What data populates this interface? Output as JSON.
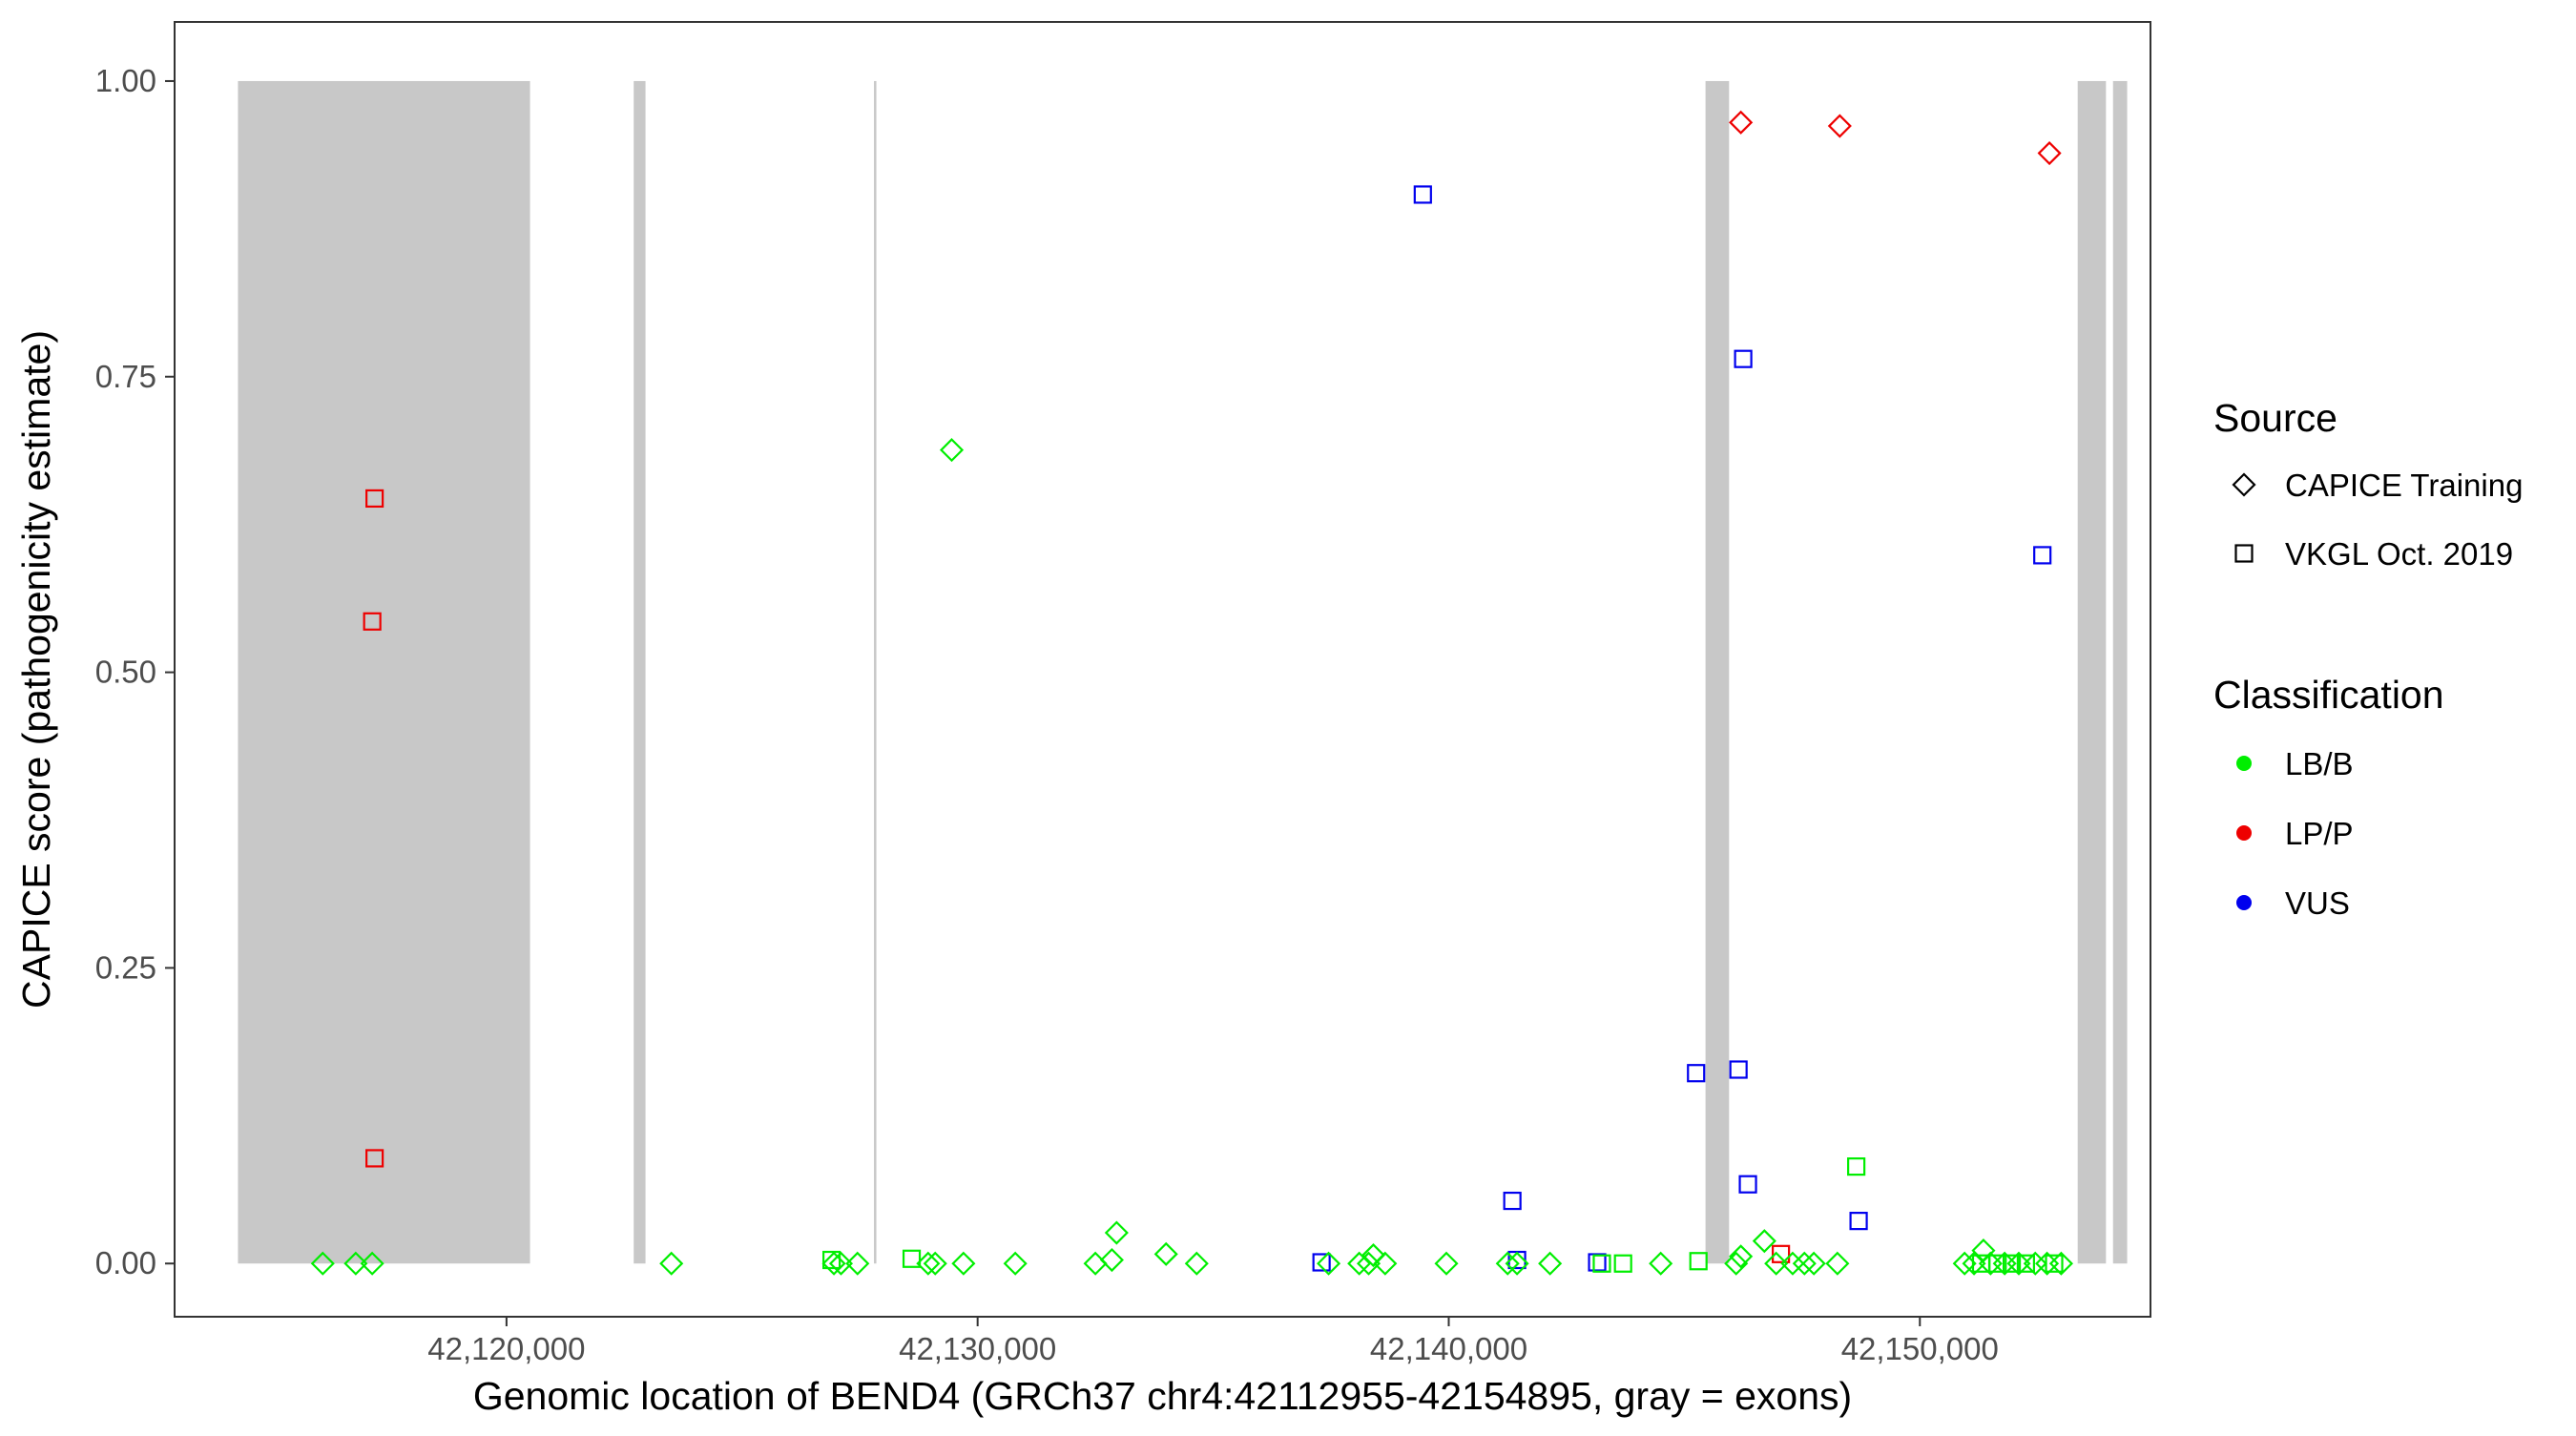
{
  "chart_data": {
    "type": "scatter",
    "xlabel": "Genomic location of BEND4 (GRCh37 chr4:42112955-42154895, gray = exons)",
    "ylabel": "CAPICE score (pathogenicity estimate)",
    "xlim": [
      42112955,
      42154895
    ],
    "ylim": [
      -0.045,
      1.05
    ],
    "x_ticks": [
      42120000,
      42130000,
      42140000,
      42150000
    ],
    "x_tick_labels": [
      "42,120,000",
      "42,130,000",
      "42,140,000",
      "42,150,000"
    ],
    "y_ticks": [
      0,
      0.25,
      0.5,
      0.75,
      1.0
    ],
    "y_tick_labels": [
      "0.00",
      "0.25",
      "0.50",
      "0.75",
      "1.00"
    ],
    "grid": false,
    "exons": [
      [
        42114300,
        42120500
      ],
      [
        42122700,
        42122950
      ],
      [
        42127800,
        42127850
      ],
      [
        42145450,
        42145950
      ],
      [
        42153350,
        42153950
      ],
      [
        42154100,
        42154400
      ]
    ],
    "exon_color": "#c8c8c8",
    "legend": {
      "placement": "right",
      "source_title": "Source",
      "source_items": [
        {
          "label": "CAPICE Training",
          "shape": "diamond"
        },
        {
          "label": "VKGL Oct. 2019",
          "shape": "square"
        }
      ],
      "classification_title": "Classification",
      "classification_items": [
        {
          "label": "LB/B",
          "color": "#00ee00"
        },
        {
          "label": "LP/P",
          "color": "#ee0000"
        },
        {
          "label": "VUS",
          "color": "#0000ee"
        }
      ]
    },
    "colors": {
      "LB/B": "#00ee00",
      "LP/P": "#ee0000",
      "VUS": "#0000ee"
    },
    "points": [
      {
        "x": 42117200,
        "y": 0.647,
        "shape": "square",
        "class": "LP/P"
      },
      {
        "x": 42117150,
        "y": 0.543,
        "shape": "square",
        "class": "LP/P"
      },
      {
        "x": 42117200,
        "y": 0.089,
        "shape": "square",
        "class": "LP/P"
      },
      {
        "x": 42146200,
        "y": 0.965,
        "shape": "diamond",
        "class": "LP/P"
      },
      {
        "x": 42148300,
        "y": 0.962,
        "shape": "diamond",
        "class": "LP/P"
      },
      {
        "x": 42152750,
        "y": 0.939,
        "shape": "diamond",
        "class": "LP/P"
      },
      {
        "x": 42147050,
        "y": 0.008,
        "shape": "square",
        "class": "LP/P"
      },
      {
        "x": 42139450,
        "y": 0.904,
        "shape": "square",
        "class": "VUS"
      },
      {
        "x": 42146250,
        "y": 0.765,
        "shape": "square",
        "class": "VUS"
      },
      {
        "x": 42152600,
        "y": 0.599,
        "shape": "square",
        "class": "VUS"
      },
      {
        "x": 42145250,
        "y": 0.161,
        "shape": "square",
        "class": "VUS"
      },
      {
        "x": 42146150,
        "y": 0.164,
        "shape": "square",
        "class": "VUS"
      },
      {
        "x": 42146350,
        "y": 0.067,
        "shape": "square",
        "class": "VUS"
      },
      {
        "x": 42141350,
        "y": 0.053,
        "shape": "square",
        "class": "VUS"
      },
      {
        "x": 42148700,
        "y": 0.036,
        "shape": "square",
        "class": "VUS"
      },
      {
        "x": 42137300,
        "y": 0.001,
        "shape": "square",
        "class": "VUS"
      },
      {
        "x": 42141450,
        "y": 0.003,
        "shape": "square",
        "class": "VUS"
      },
      {
        "x": 42143150,
        "y": 0.001,
        "shape": "square",
        "class": "VUS"
      },
      {
        "x": 42129450,
        "y": 0.688,
        "shape": "diamond",
        "class": "LB/B"
      },
      {
        "x": 42148650,
        "y": 0.082,
        "shape": "square",
        "class": "LB/B"
      },
      {
        "x": 42132950,
        "y": 0.026,
        "shape": "diamond",
        "class": "LB/B"
      },
      {
        "x": 42146700,
        "y": 0.019,
        "shape": "diamond",
        "class": "LB/B"
      },
      {
        "x": 42151350,
        "y": 0.011,
        "shape": "diamond",
        "class": "LB/B"
      },
      {
        "x": 42134000,
        "y": 0.008,
        "shape": "diamond",
        "class": "LB/B"
      },
      {
        "x": 42138400,
        "y": 0.007,
        "shape": "diamond",
        "class": "LB/B"
      },
      {
        "x": 42146200,
        "y": 0.006,
        "shape": "diamond",
        "class": "LB/B"
      },
      {
        "x": 42128600,
        "y": 0.004,
        "shape": "square",
        "class": "LB/B"
      },
      {
        "x": 42126900,
        "y": 0.003,
        "shape": "square",
        "class": "LB/B"
      },
      {
        "x": 42145300,
        "y": 0.002,
        "shape": "square",
        "class": "LB/B"
      },
      {
        "x": 42132850,
        "y": 0.003,
        "shape": "diamond",
        "class": "LB/B"
      },
      {
        "x": 42116100,
        "y": 0.0,
        "shape": "diamond",
        "class": "LB/B"
      },
      {
        "x": 42116800,
        "y": 0.0,
        "shape": "diamond",
        "class": "LB/B"
      },
      {
        "x": 42117150,
        "y": 0.0,
        "shape": "diamond",
        "class": "LB/B"
      },
      {
        "x": 42123500,
        "y": 0.0,
        "shape": "diamond",
        "class": "LB/B"
      },
      {
        "x": 42126950,
        "y": 0.0,
        "shape": "diamond",
        "class": "LB/B"
      },
      {
        "x": 42127100,
        "y": 0.0,
        "shape": "diamond",
        "class": "LB/B"
      },
      {
        "x": 42127450,
        "y": 0.0,
        "shape": "diamond",
        "class": "LB/B"
      },
      {
        "x": 42128950,
        "y": 0.0,
        "shape": "diamond",
        "class": "LB/B"
      },
      {
        "x": 42129100,
        "y": 0.0,
        "shape": "diamond",
        "class": "LB/B"
      },
      {
        "x": 42129700,
        "y": 0.0,
        "shape": "diamond",
        "class": "LB/B"
      },
      {
        "x": 42130800,
        "y": 0.0,
        "shape": "diamond",
        "class": "LB/B"
      },
      {
        "x": 42132500,
        "y": 0.0,
        "shape": "diamond",
        "class": "LB/B"
      },
      {
        "x": 42134650,
        "y": 0.0,
        "shape": "diamond",
        "class": "LB/B"
      },
      {
        "x": 42137450,
        "y": 0.0,
        "shape": "diamond",
        "class": "LB/B"
      },
      {
        "x": 42138100,
        "y": 0.0,
        "shape": "diamond",
        "class": "LB/B"
      },
      {
        "x": 42138300,
        "y": 0.0,
        "shape": "diamond",
        "class": "LB/B"
      },
      {
        "x": 42138650,
        "y": 0.0,
        "shape": "diamond",
        "class": "LB/B"
      },
      {
        "x": 42139950,
        "y": 0.0,
        "shape": "diamond",
        "class": "LB/B"
      },
      {
        "x": 42141250,
        "y": 0.0,
        "shape": "diamond",
        "class": "LB/B"
      },
      {
        "x": 42141450,
        "y": 0.0,
        "shape": "diamond",
        "class": "LB/B"
      },
      {
        "x": 42142150,
        "y": 0.0,
        "shape": "diamond",
        "class": "LB/B"
      },
      {
        "x": 42143250,
        "y": 0.0,
        "shape": "square",
        "class": "LB/B"
      },
      {
        "x": 42143700,
        "y": 0.0,
        "shape": "square",
        "class": "LB/B"
      },
      {
        "x": 42144500,
        "y": 0.0,
        "shape": "diamond",
        "class": "LB/B"
      },
      {
        "x": 42146100,
        "y": 0.0,
        "shape": "diamond",
        "class": "LB/B"
      },
      {
        "x": 42146950,
        "y": 0.0,
        "shape": "diamond",
        "class": "LB/B"
      },
      {
        "x": 42147300,
        "y": 0.0,
        "shape": "diamond",
        "class": "LB/B"
      },
      {
        "x": 42147550,
        "y": 0.0,
        "shape": "diamond",
        "class": "LB/B"
      },
      {
        "x": 42147750,
        "y": 0.0,
        "shape": "diamond",
        "class": "LB/B"
      },
      {
        "x": 42148250,
        "y": 0.0,
        "shape": "diamond",
        "class": "LB/B"
      },
      {
        "x": 42150950,
        "y": 0.0,
        "shape": "diamond",
        "class": "LB/B"
      },
      {
        "x": 42151150,
        "y": 0.0,
        "shape": "diamond",
        "class": "LB/B"
      },
      {
        "x": 42151300,
        "y": 0.0,
        "shape": "square",
        "class": "LB/B"
      },
      {
        "x": 42151500,
        "y": 0.0,
        "shape": "diamond",
        "class": "LB/B"
      },
      {
        "x": 42151650,
        "y": 0.0,
        "shape": "square",
        "class": "LB/B"
      },
      {
        "x": 42151800,
        "y": 0.0,
        "shape": "diamond",
        "class": "LB/B"
      },
      {
        "x": 42151950,
        "y": 0.0,
        "shape": "square",
        "class": "LB/B"
      },
      {
        "x": 42152100,
        "y": 0.0,
        "shape": "diamond",
        "class": "LB/B"
      },
      {
        "x": 42152250,
        "y": 0.0,
        "shape": "square",
        "class": "LB/B"
      },
      {
        "x": 42152450,
        "y": 0.0,
        "shape": "diamond",
        "class": "LB/B"
      },
      {
        "x": 42152700,
        "y": 0.0,
        "shape": "diamond",
        "class": "LB/B"
      },
      {
        "x": 42152850,
        "y": 0.0,
        "shape": "square",
        "class": "LB/B"
      },
      {
        "x": 42153000,
        "y": 0.0,
        "shape": "diamond",
        "class": "LB/B"
      }
    ]
  }
}
